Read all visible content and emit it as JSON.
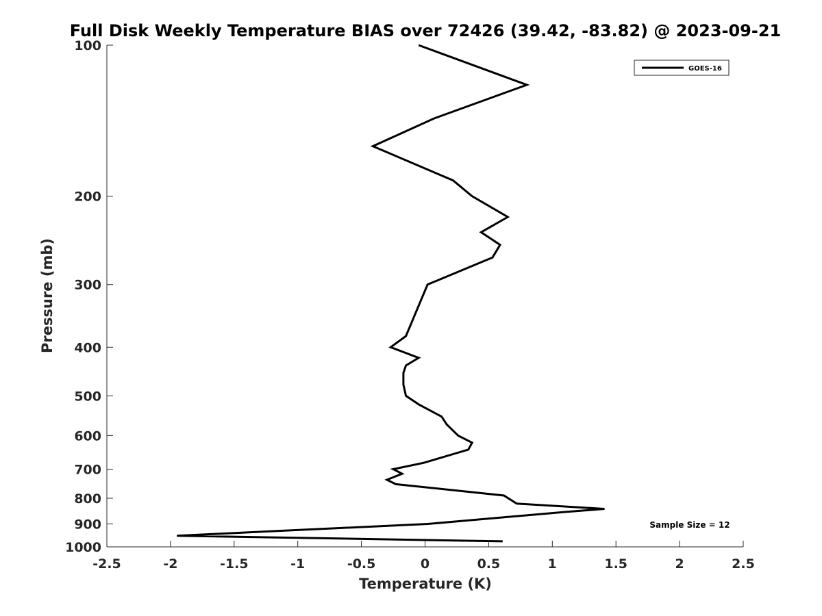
{
  "chart_data": {
    "type": "line",
    "title": "Full Disk Weekly Temperature BIAS over 72426 (39.42, -83.82) @ 2023-09-21",
    "xlabel": "Temperature (K)",
    "ylabel": "Pressure (mb)",
    "xlim": [
      -2.5,
      2.5
    ],
    "ylim": [
      100,
      1000
    ],
    "y_scale": "log",
    "y_reversed": true,
    "xticks": [
      -2.5,
      -2,
      -1.5,
      -1,
      -0.5,
      0,
      0.5,
      1,
      1.5,
      2,
      2.5
    ],
    "xtick_labels": [
      "-2.5",
      "-2",
      "-1.5",
      "-1",
      "-0.5",
      "0",
      "0.5",
      "1",
      "1.5",
      "2",
      "2.5"
    ],
    "yticks": [
      100,
      200,
      300,
      400,
      500,
      600,
      700,
      800,
      900,
      1000
    ],
    "ytick_labels": [
      "100",
      "200",
      "300",
      "400",
      "500",
      "600",
      "700",
      "800",
      "900",
      "1000"
    ],
    "grid": false,
    "legend_position": "top-right",
    "series": [
      {
        "name": "GOES-16",
        "color": "#000000",
        "points": [
          {
            "x": -0.05,
            "p": 100
          },
          {
            "x": 0.8,
            "p": 120
          },
          {
            "x": 0.07,
            "p": 140
          },
          {
            "x": -0.41,
            "p": 159
          },
          {
            "x": 0.22,
            "p": 186
          },
          {
            "x": 0.37,
            "p": 200
          },
          {
            "x": 0.65,
            "p": 220
          },
          {
            "x": 0.44,
            "p": 236
          },
          {
            "x": 0.59,
            "p": 250
          },
          {
            "x": 0.53,
            "p": 265
          },
          {
            "x": 0.02,
            "p": 300
          },
          {
            "x": -0.15,
            "p": 380
          },
          {
            "x": -0.27,
            "p": 400
          },
          {
            "x": -0.05,
            "p": 420
          },
          {
            "x": -0.15,
            "p": 435
          },
          {
            "x": -0.17,
            "p": 450
          },
          {
            "x": -0.17,
            "p": 475
          },
          {
            "x": -0.15,
            "p": 500
          },
          {
            "x": -0.05,
            "p": 520
          },
          {
            "x": 0.13,
            "p": 550
          },
          {
            "x": 0.17,
            "p": 570
          },
          {
            "x": 0.26,
            "p": 600
          },
          {
            "x": 0.37,
            "p": 620
          },
          {
            "x": 0.34,
            "p": 640
          },
          {
            "x": -0.01,
            "p": 680
          },
          {
            "x": -0.25,
            "p": 700
          },
          {
            "x": -0.18,
            "p": 715
          },
          {
            "x": -0.3,
            "p": 735
          },
          {
            "x": -0.23,
            "p": 750
          },
          {
            "x": 0.62,
            "p": 790
          },
          {
            "x": 0.72,
            "p": 820
          },
          {
            "x": 1.41,
            "p": 840
          },
          {
            "x": 1.1,
            "p": 852
          },
          {
            "x": 0.02,
            "p": 900
          },
          {
            "x": -1.95,
            "p": 950
          },
          {
            "x": 0.61,
            "p": 975
          }
        ]
      }
    ],
    "annotations": [
      {
        "text": "Sample Size = 12",
        "position": "bottom-right"
      }
    ]
  }
}
